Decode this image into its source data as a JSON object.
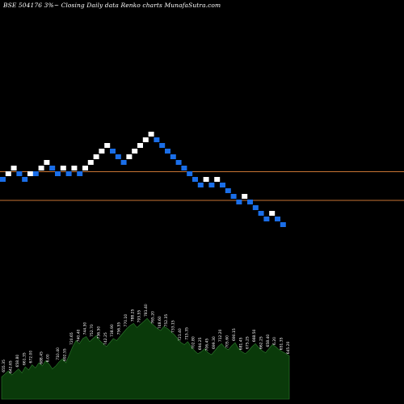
{
  "header": {
    "title": "BSE 504176  3%~ Closing Daily data  Renko  charts MunafaSutra.com"
  },
  "colors": {
    "background": "#000000",
    "up_brick": "#ffffff",
    "down_brick": "#1a6ee8",
    "reference_line": "#c87533",
    "volume_fill": "#0a3a0a",
    "volume_outline": "#2e7d2e",
    "volume_label": "#ffffff"
  },
  "chart_data": [
    {
      "type": "renko",
      "title": "BSE 504176  3%~ Closing Daily data  Renko  charts MunafaSutra.com",
      "brick_size_label": "3%~",
      "bricks": [
        {
          "dir": "down",
          "level": 0
        },
        {
          "dir": "up",
          "level": 1
        },
        {
          "dir": "up",
          "level": 2
        },
        {
          "dir": "down",
          "level": 1
        },
        {
          "dir": "down",
          "level": 0
        },
        {
          "dir": "up",
          "level": 1
        },
        {
          "dir": "down",
          "level": 1
        },
        {
          "dir": "up",
          "level": 2
        },
        {
          "dir": "up",
          "level": 3
        },
        {
          "dir": "down",
          "level": 2
        },
        {
          "dir": "down",
          "level": 1
        },
        {
          "dir": "up",
          "level": 2
        },
        {
          "dir": "down",
          "level": 1
        },
        {
          "dir": "up",
          "level": 2
        },
        {
          "dir": "down",
          "level": 1
        },
        {
          "dir": "up",
          "level": 2
        },
        {
          "dir": "up",
          "level": 3
        },
        {
          "dir": "up",
          "level": 4
        },
        {
          "dir": "up",
          "level": 5
        },
        {
          "dir": "up",
          "level": 6
        },
        {
          "dir": "down",
          "level": 5
        },
        {
          "dir": "down",
          "level": 4
        },
        {
          "dir": "down",
          "level": 3
        },
        {
          "dir": "up",
          "level": 4
        },
        {
          "dir": "up",
          "level": 5
        },
        {
          "dir": "up",
          "level": 6
        },
        {
          "dir": "up",
          "level": 7
        },
        {
          "dir": "up",
          "level": 8
        },
        {
          "dir": "down",
          "level": 7
        },
        {
          "dir": "down",
          "level": 6
        },
        {
          "dir": "down",
          "level": 5
        },
        {
          "dir": "down",
          "level": 4
        },
        {
          "dir": "down",
          "level": 3
        },
        {
          "dir": "down",
          "level": 2
        },
        {
          "dir": "down",
          "level": 1
        },
        {
          "dir": "down",
          "level": 0
        },
        {
          "dir": "down",
          "level": -1
        },
        {
          "dir": "up",
          "level": 0
        },
        {
          "dir": "down",
          "level": -1
        },
        {
          "dir": "up",
          "level": 0
        },
        {
          "dir": "down",
          "level": -1
        },
        {
          "dir": "down",
          "level": -2
        },
        {
          "dir": "down",
          "level": -3
        },
        {
          "dir": "down",
          "level": -4
        },
        {
          "dir": "up",
          "level": -3
        },
        {
          "dir": "down",
          "level": -4
        },
        {
          "dir": "down",
          "level": -5
        },
        {
          "dir": "down",
          "level": -6
        },
        {
          "dir": "down",
          "level": -7
        },
        {
          "dir": "up",
          "level": -6
        },
        {
          "dir": "down",
          "level": -7
        },
        {
          "dir": "down",
          "level": -8
        }
      ],
      "reference_levels": [
        1,
        -3.5
      ],
      "volume": {
        "values": [
          22,
          25,
          28,
          24,
          27,
          30,
          26,
          32,
          29,
          34,
          31,
          36,
          33,
          38,
          35,
          30,
          33,
          37,
          40,
          36,
          44,
          52,
          58,
          55,
          60,
          62,
          57,
          60,
          63,
          58,
          55,
          52,
          56,
          60,
          58,
          62,
          66,
          70,
          73,
          75,
          71,
          74,
          77,
          80,
          76,
          73,
          70,
          68,
          72,
          70,
          67,
          64,
          60,
          56,
          54,
          57,
          52,
          48,
          45,
          47,
          50,
          46,
          44,
          48,
          52,
          55,
          51,
          49,
          53,
          56,
          50,
          47,
          45,
          48,
          52,
          55,
          51,
          48,
          46,
          50,
          54,
          52,
          49,
          47,
          45,
          43
        ],
        "labels": [
          {
            "i": 1,
            "text": "655.35"
          },
          {
            "i": 3,
            "text": "642.65"
          },
          {
            "i": 5,
            "text": "658.80"
          },
          {
            "i": 7,
            "text": "661.35"
          },
          {
            "i": 9,
            "text": "672.00"
          },
          {
            "i": 12,
            "text": "688.45"
          },
          {
            "i": 14,
            "text": "6.00"
          },
          {
            "i": 17,
            "text": "710.40"
          },
          {
            "i": 19,
            "text": "692.55"
          },
          {
            "i": 21,
            "text": "720.65"
          },
          {
            "i": 23,
            "text": "740.40"
          },
          {
            "i": 25,
            "text": "744.30"
          },
          {
            "i": 27,
            "text": "752.70"
          },
          {
            "i": 29,
            "text": "736.50"
          },
          {
            "i": 31,
            "text": "742.25"
          },
          {
            "i": 33,
            "text": "738.90"
          },
          {
            "i": 35,
            "text": "756.55"
          },
          {
            "i": 37,
            "text": "770.10"
          },
          {
            "i": 39,
            "text": "788.25"
          },
          {
            "i": 41,
            "text": "793.55"
          },
          {
            "i": 43,
            "text": "781.40"
          },
          {
            "i": 45,
            "text": "765.20"
          },
          {
            "i": 47,
            "text": "748.60"
          },
          {
            "i": 49,
            "text": "752.35"
          },
          {
            "i": 51,
            "text": "733.15"
          },
          {
            "i": 53,
            "text": "721.40"
          },
          {
            "i": 55,
            "text": "715.35"
          },
          {
            "i": 57,
            "text": "702.80"
          },
          {
            "i": 59,
            "text": "694.25"
          },
          {
            "i": 61,
            "text": "706.45"
          },
          {
            "i": 63,
            "text": "699.30"
          },
          {
            "i": 65,
            "text": "712.20"
          },
          {
            "i": 67,
            "text": "705.60"
          },
          {
            "i": 69,
            "text": "690.15"
          },
          {
            "i": 71,
            "text": "681.45"
          },
          {
            "i": 73,
            "text": "675.25"
          },
          {
            "i": 75,
            "text": "668.50"
          },
          {
            "i": 77,
            "text": "662.25"
          },
          {
            "i": 79,
            "text": "658.40"
          },
          {
            "i": 81,
            "text": "6.20"
          },
          {
            "i": 83,
            "text": "651.35"
          },
          {
            "i": 85,
            "text": "645.20"
          }
        ]
      }
    }
  ]
}
